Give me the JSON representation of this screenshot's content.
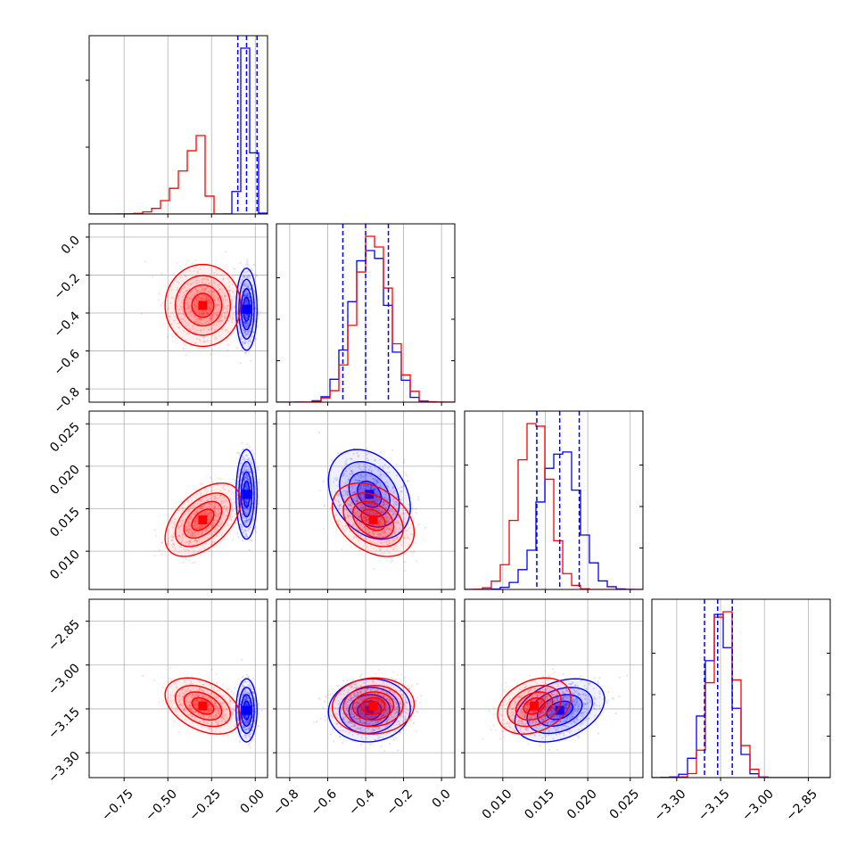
{
  "colors": {
    "series_a": "#0000ff",
    "series_b": "#ff0000",
    "grid": "#b0b0b0"
  },
  "chart_data": {
    "type": "corner",
    "title": "",
    "grid": true,
    "params": [
      {
        "min": -0.95,
        "max": 0.07,
        "ticks": [
          -0.75,
          -0.5,
          -0.25,
          0.0
        ],
        "tick_labels": [
          "−0.75",
          "−0.50",
          "−0.25",
          "0.00"
        ]
      },
      {
        "min": -0.87,
        "max": 0.07,
        "ticks": [
          -0.8,
          -0.6,
          -0.4,
          -0.2,
          0.0
        ],
        "tick_labels": [
          "−0.8",
          "−0.6",
          "−0.4",
          "−0.2",
          "0.0"
        ]
      },
      {
        "min": 0.0055,
        "max": 0.0265,
        "ticks": [
          0.01,
          0.015,
          0.02,
          0.025
        ],
        "tick_labels": [
          "0.010",
          "0.015",
          "0.020",
          "0.025"
        ]
      },
      {
        "min": -3.385,
        "max": -2.775,
        "ticks": [
          -3.3,
          -3.15,
          -3.0,
          -2.85
        ],
        "tick_labels": [
          "−3.30",
          "−3.15",
          "−3.00",
          "−2.85"
        ]
      }
    ],
    "series": [
      {
        "key": "series_a",
        "color": "#0000ff",
        "mean": [
          -0.05,
          -0.38,
          0.0167,
          -3.155
        ],
        "sd": [
          0.025,
          0.09,
          0.0022,
          0.045
        ],
        "corr": {
          "0-1": 0.0,
          "0-2": 0.0,
          "0-3": 0.0,
          "1-2": -0.3,
          "1-3": 0.05,
          "2-3": 0.35
        },
        "quantiles": [
          [
            -0.1,
            -0.05,
            0.01
          ],
          [
            -0.52,
            -0.4,
            -0.28
          ],
          [
            0.014,
            0.0167,
            0.019
          ],
          [
            -3.205,
            -3.16,
            -3.11
          ]
        ]
      },
      {
        "key": "series_b",
        "color": "#ff0000",
        "mean": [
          -0.3,
          -0.36,
          0.0137,
          -3.14
        ],
        "sd": [
          0.09,
          0.09,
          0.0018,
          0.04
        ],
        "corr": {
          "0-1": 0.0,
          "0-2": 0.5,
          "0-3": -0.4,
          "1-2": -0.35,
          "1-3": 0.05,
          "2-3": 0.3
        }
      }
    ]
  }
}
